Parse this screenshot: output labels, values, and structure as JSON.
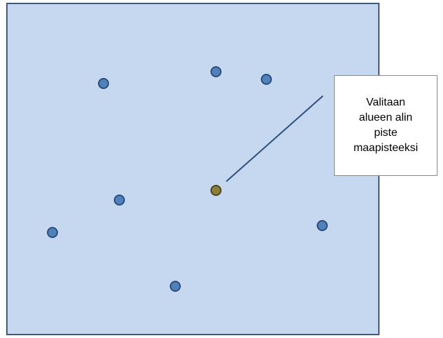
{
  "colors": {
    "area_fill": "#c5d8f0",
    "area_border": "#3f5a7d",
    "point_fill": "#4f81bd",
    "point_border": "#2c4d75",
    "selected_point_fill": "#8c7f3c",
    "selected_point_border": "#4d4520",
    "leader_line": "#2c4d75"
  },
  "points": [
    {
      "id": "point-1",
      "kind": "point"
    },
    {
      "id": "point-2",
      "kind": "point"
    },
    {
      "id": "point-3",
      "kind": "point"
    },
    {
      "id": "point-4",
      "kind": "point"
    },
    {
      "id": "point-5",
      "kind": "point"
    },
    {
      "id": "point-6",
      "kind": "point"
    },
    {
      "id": "point-7",
      "kind": "point"
    },
    {
      "id": "selected-ground-point",
      "kind": "selected"
    }
  ],
  "callout": {
    "lines": [
      "Valitaan",
      "alueen alin",
      "piste",
      "maapisteeksi"
    ]
  }
}
